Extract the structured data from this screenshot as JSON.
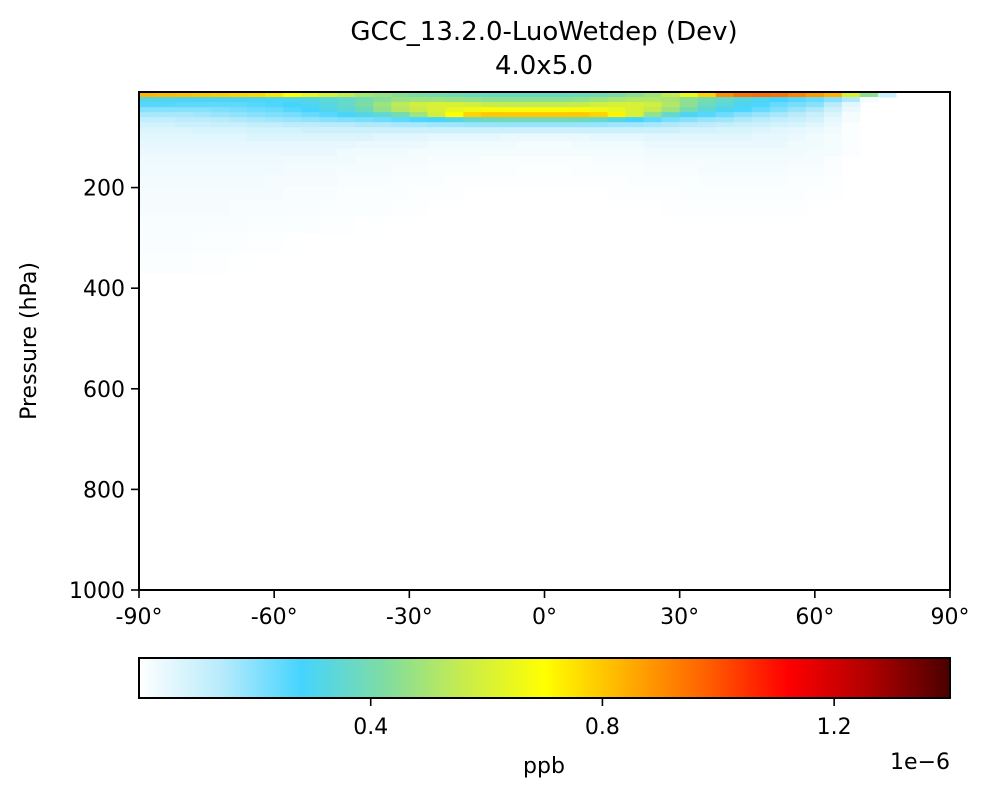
{
  "chart_data": {
    "type": "heatmap",
    "title": "GCC_13.2.0-LuoWetdep (Dev)",
    "subtitle": "4.0x5.0",
    "xlabel": "",
    "ylabel": "Pressure (hPa)",
    "xlim": [
      -90,
      90
    ],
    "ylim": [
      1000,
      10
    ],
    "x_ticks": [
      -90,
      -60,
      -30,
      0,
      30,
      60,
      90
    ],
    "x_tick_labels": [
      "-90°",
      "-60°",
      "-30°",
      "0°",
      "30°",
      "60°",
      "90°"
    ],
    "y_ticks": [
      200,
      400,
      600,
      800,
      1000
    ],
    "y_tick_labels": [
      "200",
      "400",
      "600",
      "800",
      "1000"
    ],
    "colorbar": {
      "label": "ppb",
      "offset_text": "1e−6",
      "range": [
        0,
        1.4
      ],
      "ticks": [
        0.4,
        0.8,
        1.2
      ],
      "tick_labels": [
        "0.4",
        "0.8",
        "1.2"
      ],
      "colormap_stops": [
        "#ffffff",
        "#b9ebfb",
        "#45d4ff",
        "#7ddca4",
        "#c8ec4c",
        "#ffff00",
        "#ffb000",
        "#ff6000",
        "#ff0000",
        "#b00000",
        "#4a0000"
      ]
    },
    "grid": false,
    "lat": [
      -88,
      -84,
      -80,
      -76,
      -72,
      -68,
      -64,
      -60,
      -56,
      -52,
      -48,
      -44,
      -40,
      -36,
      -32,
      -28,
      -24,
      -20,
      -16,
      -12,
      -8,
      -4,
      0,
      4,
      8,
      12,
      16,
      20,
      24,
      28,
      32,
      36,
      40,
      44,
      48,
      52,
      56,
      60,
      64,
      68,
      72,
      76,
      80,
      84,
      88
    ],
    "levels_hPa": [
      15,
      25,
      35,
      45,
      55,
      65,
      75,
      85,
      100,
      115,
      130,
      145,
      165,
      185,
      210,
      240,
      270,
      310,
      350
    ],
    "values_1e-6_ppb": [
      [
        0.83,
        0.82,
        0.81,
        0.8,
        0.79,
        0.78,
        0.77,
        0.74,
        0.7,
        0.65,
        0.6,
        0.55,
        0.5,
        0.47,
        0.44,
        0.42,
        0.4,
        0.39,
        0.38,
        0.37,
        0.37,
        0.37,
        0.37,
        0.37,
        0.38,
        0.39,
        0.41,
        0.44,
        0.48,
        0.55,
        0.65,
        0.78,
        0.9,
        0.95,
        0.96,
        0.95,
        0.92,
        0.88,
        0.84,
        0.6,
        0.45,
        0.1,
        0.0,
        0.0,
        0.0
      ],
      [
        0.32,
        0.31,
        0.3,
        0.3,
        0.3,
        0.3,
        0.3,
        0.3,
        0.31,
        0.32,
        0.34,
        0.36,
        0.4,
        0.44,
        0.47,
        0.48,
        0.48,
        0.47,
        0.46,
        0.45,
        0.45,
        0.45,
        0.45,
        0.45,
        0.46,
        0.48,
        0.5,
        0.52,
        0.52,
        0.5,
        0.45,
        0.4,
        0.36,
        0.33,
        0.3,
        0.28,
        0.26,
        0.24,
        0.2,
        0.15,
        0.02,
        0.0,
        0.0,
        0.0,
        0.0
      ],
      [
        0.26,
        0.26,
        0.25,
        0.25,
        0.25,
        0.25,
        0.26,
        0.27,
        0.28,
        0.3,
        0.33,
        0.36,
        0.42,
        0.48,
        0.54,
        0.58,
        0.6,
        0.6,
        0.58,
        0.56,
        0.55,
        0.55,
        0.55,
        0.55,
        0.56,
        0.58,
        0.6,
        0.6,
        0.58,
        0.52,
        0.45,
        0.38,
        0.34,
        0.3,
        0.27,
        0.24,
        0.22,
        0.2,
        0.14,
        0.06,
        0.0,
        0.0,
        0.0,
        0.0,
        0.0
      ],
      [
        0.2,
        0.2,
        0.2,
        0.2,
        0.21,
        0.22,
        0.23,
        0.24,
        0.26,
        0.28,
        0.31,
        0.34,
        0.38,
        0.46,
        0.52,
        0.56,
        0.6,
        0.64,
        0.66,
        0.68,
        0.68,
        0.68,
        0.68,
        0.68,
        0.68,
        0.66,
        0.64,
        0.6,
        0.55,
        0.48,
        0.4,
        0.34,
        0.3,
        0.27,
        0.24,
        0.21,
        0.18,
        0.15,
        0.1,
        0.04,
        0.0,
        0.0,
        0.0,
        0.0,
        0.0
      ],
      [
        0.16,
        0.16,
        0.16,
        0.17,
        0.18,
        0.19,
        0.2,
        0.21,
        0.22,
        0.24,
        0.26,
        0.29,
        0.32,
        0.35,
        0.4,
        0.48,
        0.58,
        0.7,
        0.78,
        0.8,
        0.8,
        0.8,
        0.8,
        0.8,
        0.8,
        0.78,
        0.72,
        0.6,
        0.46,
        0.36,
        0.3,
        0.26,
        0.23,
        0.2,
        0.18,
        0.16,
        0.14,
        0.11,
        0.07,
        0.02,
        0.0,
        0.0,
        0.0,
        0.0,
        0.0
      ],
      [
        0.12,
        0.12,
        0.13,
        0.13,
        0.14,
        0.15,
        0.16,
        0.17,
        0.18,
        0.19,
        0.2,
        0.21,
        0.22,
        0.23,
        0.25,
        0.27,
        0.29,
        0.32,
        0.36,
        0.38,
        0.39,
        0.39,
        0.39,
        0.39,
        0.38,
        0.36,
        0.32,
        0.28,
        0.25,
        0.22,
        0.2,
        0.18,
        0.17,
        0.15,
        0.14,
        0.12,
        0.11,
        0.09,
        0.05,
        0.02,
        0.0,
        0.0,
        0.0,
        0.0,
        0.0
      ],
      [
        0.09,
        0.09,
        0.1,
        0.1,
        0.11,
        0.11,
        0.12,
        0.12,
        0.13,
        0.13,
        0.14,
        0.14,
        0.15,
        0.15,
        0.16,
        0.16,
        0.17,
        0.17,
        0.18,
        0.18,
        0.18,
        0.18,
        0.18,
        0.18,
        0.18,
        0.18,
        0.17,
        0.17,
        0.16,
        0.15,
        0.14,
        0.13,
        0.12,
        0.11,
        0.1,
        0.09,
        0.08,
        0.06,
        0.04,
        0.01,
        0.0,
        0.0,
        0.0,
        0.0,
        0.0
      ],
      [
        0.07,
        0.07,
        0.07,
        0.08,
        0.08,
        0.08,
        0.09,
        0.09,
        0.09,
        0.1,
        0.1,
        0.1,
        0.1,
        0.1,
        0.1,
        0.1,
        0.1,
        0.1,
        0.1,
        0.1,
        0.1,
        0.1,
        0.1,
        0.1,
        0.1,
        0.1,
        0.1,
        0.1,
        0.1,
        0.1,
        0.09,
        0.09,
        0.08,
        0.08,
        0.07,
        0.06,
        0.05,
        0.04,
        0.03,
        0.01,
        0.0,
        0.0,
        0.0,
        0.0,
        0.0
      ],
      [
        0.06,
        0.06,
        0.06,
        0.06,
        0.06,
        0.06,
        0.07,
        0.07,
        0.07,
        0.07,
        0.07,
        0.07,
        0.07,
        0.06,
        0.06,
        0.06,
        0.05,
        0.05,
        0.05,
        0.05,
        0.04,
        0.04,
        0.04,
        0.04,
        0.04,
        0.05,
        0.05,
        0.05,
        0.06,
        0.06,
        0.06,
        0.06,
        0.06,
        0.06,
        0.05,
        0.05,
        0.04,
        0.03,
        0.02,
        0.01,
        0.0,
        0.0,
        0.0,
        0.0,
        0.0
      ],
      [
        0.05,
        0.05,
        0.05,
        0.05,
        0.05,
        0.05,
        0.05,
        0.05,
        0.05,
        0.05,
        0.05,
        0.05,
        0.04,
        0.04,
        0.04,
        0.04,
        0.03,
        0.03,
        0.03,
        0.03,
        0.03,
        0.02,
        0.02,
        0.02,
        0.03,
        0.03,
        0.03,
        0.03,
        0.04,
        0.04,
        0.04,
        0.04,
        0.04,
        0.04,
        0.04,
        0.04,
        0.03,
        0.03,
        0.02,
        0.01,
        0.0,
        0.0,
        0.0,
        0.0,
        0.0
      ],
      [
        0.04,
        0.04,
        0.04,
        0.04,
        0.04,
        0.04,
        0.04,
        0.04,
        0.04,
        0.04,
        0.04,
        0.03,
        0.03,
        0.03,
        0.03,
        0.02,
        0.02,
        0.02,
        0.02,
        0.02,
        0.02,
        0.02,
        0.02,
        0.02,
        0.02,
        0.02,
        0.02,
        0.02,
        0.03,
        0.03,
        0.03,
        0.03,
        0.03,
        0.03,
        0.03,
        0.03,
        0.03,
        0.02,
        0.02,
        0.01,
        0.0,
        0.0,
        0.0,
        0.0,
        0.0
      ],
      [
        0.035,
        0.035,
        0.035,
        0.035,
        0.035,
        0.035,
        0.035,
        0.035,
        0.03,
        0.03,
        0.03,
        0.03,
        0.02,
        0.02,
        0.02,
        0.02,
        0.015,
        0.015,
        0.015,
        0.01,
        0.01,
        0.01,
        0.01,
        0.01,
        0.01,
        0.015,
        0.015,
        0.015,
        0.02,
        0.02,
        0.02,
        0.02,
        0.025,
        0.025,
        0.025,
        0.025,
        0.02,
        0.02,
        0.01,
        0.0,
        0.0,
        0.0,
        0.0,
        0.0,
        0.0
      ],
      [
        0.03,
        0.03,
        0.03,
        0.03,
        0.03,
        0.03,
        0.03,
        0.03,
        0.025,
        0.025,
        0.025,
        0.02,
        0.02,
        0.02,
        0.015,
        0.015,
        0.01,
        0.01,
        0.01,
        0.01,
        0.01,
        0.005,
        0.005,
        0.005,
        0.01,
        0.01,
        0.01,
        0.01,
        0.015,
        0.015,
        0.015,
        0.02,
        0.02,
        0.02,
        0.02,
        0.02,
        0.015,
        0.015,
        0.01,
        0.0,
        0.0,
        0.0,
        0.0,
        0.0,
        0.0
      ],
      [
        0.025,
        0.025,
        0.025,
        0.025,
        0.025,
        0.025,
        0.025,
        0.02,
        0.02,
        0.02,
        0.02,
        0.015,
        0.015,
        0.015,
        0.01,
        0.01,
        0.01,
        0.005,
        0.005,
        0.005,
        0.005,
        0.005,
        0.005,
        0.005,
        0.005,
        0.005,
        0.005,
        0.01,
        0.01,
        0.01,
        0.01,
        0.015,
        0.015,
        0.015,
        0.015,
        0.015,
        0.01,
        0.01,
        0.005,
        0.0,
        0.0,
        0.0,
        0.0,
        0.0,
        0.0
      ],
      [
        0.02,
        0.02,
        0.02,
        0.02,
        0.02,
        0.02,
        0.02,
        0.02,
        0.015,
        0.015,
        0.015,
        0.01,
        0.01,
        0.01,
        0.01,
        0.005,
        0.005,
        0.005,
        0.0,
        0.0,
        0.0,
        0.0,
        0.0,
        0.0,
        0.0,
        0.0,
        0.005,
        0.005,
        0.005,
        0.005,
        0.01,
        0.01,
        0.01,
        0.01,
        0.01,
        0.01,
        0.01,
        0.005,
        0.005,
        0.0,
        0.0,
        0.0,
        0.0,
        0.0,
        0.0
      ],
      [
        0.018,
        0.018,
        0.018,
        0.018,
        0.018,
        0.015,
        0.015,
        0.015,
        0.012,
        0.012,
        0.01,
        0.01,
        0.008,
        0.008,
        0.005,
        0.005,
        0.0,
        0.0,
        0.0,
        0.0,
        0.0,
        0.0,
        0.0,
        0.0,
        0.0,
        0.0,
        0.0,
        0.0,
        0.0,
        0.005,
        0.005,
        0.005,
        0.005,
        0.005,
        0.005,
        0.005,
        0.005,
        0.0,
        0.0,
        0.0,
        0.0,
        0.0,
        0.0,
        0.0,
        0.0
      ],
      [
        0.015,
        0.015,
        0.015,
        0.015,
        0.012,
        0.012,
        0.01,
        0.01,
        0.008,
        0.008,
        0.005,
        0.005,
        0.003,
        0.003,
        0.0,
        0.0,
        0.0,
        0.0,
        0.0,
        0.0,
        0.0,
        0.0,
        0.0,
        0.0,
        0.0,
        0.0,
        0.0,
        0.0,
        0.0,
        0.0,
        0.0,
        0.0,
        0.0,
        0.0,
        0.0,
        0.0,
        0.0,
        0.0,
        0.0,
        0.0,
        0.0,
        0.0,
        0.0,
        0.0,
        0.0
      ],
      [
        0.012,
        0.012,
        0.012,
        0.01,
        0.01,
        0.008,
        0.006,
        0.004,
        0.002,
        0.0,
        0.0,
        0.0,
        0.0,
        0.0,
        0.0,
        0.0,
        0.0,
        0.0,
        0.0,
        0.0,
        0.0,
        0.0,
        0.0,
        0.0,
        0.0,
        0.0,
        0.0,
        0.0,
        0.0,
        0.0,
        0.0,
        0.0,
        0.0,
        0.0,
        0.0,
        0.0,
        0.0,
        0.0,
        0.0,
        0.0,
        0.0,
        0.0,
        0.0,
        0.0,
        0.0
      ],
      [
        0.01,
        0.01,
        0.008,
        0.006,
        0.004,
        0.002,
        0.0,
        0.0,
        0.0,
        0.0,
        0.0,
        0.0,
        0.0,
        0.0,
        0.0,
        0.0,
        0.0,
        0.0,
        0.0,
        0.0,
        0.0,
        0.0,
        0.0,
        0.0,
        0.0,
        0.0,
        0.0,
        0.0,
        0.0,
        0.0,
        0.0,
        0.0,
        0.0,
        0.0,
        0.0,
        0.0,
        0.0,
        0.0,
        0.0,
        0.0,
        0.0,
        0.0,
        0.0,
        0.0,
        0.0
      ]
    ]
  }
}
